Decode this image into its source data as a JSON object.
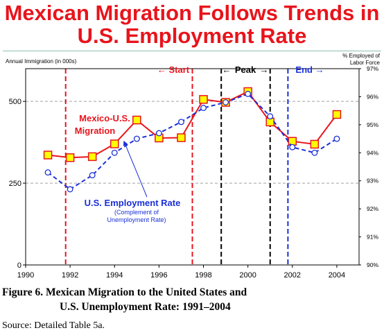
{
  "title_line1": "Mexican Migration Follows Trends in",
  "title_line2": "U.S. Employment Rate",
  "caption_line1": "Figure 6.  Mexican Migration to the United States and",
  "caption_line2": "U.S. Unemployment Rate:  1991–2004",
  "source": "Source:  Detailed Table 5a.",
  "chart_data": {
    "type": "line",
    "y_left_label": "Annual Immigration (in 000s)",
    "y_right_label_line1": "% Employed of",
    "y_right_label_line2": "Labor Force",
    "xlim": [
      1990,
      2005
    ],
    "ylim_left": [
      0,
      600
    ],
    "ylim_right": [
      90,
      97
    ],
    "x_ticks": [
      1990,
      1992,
      1994,
      1996,
      1998,
      2000,
      2002,
      2004
    ],
    "y_left_ticks": [
      0,
      250,
      500
    ],
    "y_right_ticks": [
      "90%",
      "91%",
      "92%",
      "93%",
      "94%",
      "95%",
      "96%",
      "97%"
    ],
    "y_right_tick_values": [
      90,
      91,
      92,
      93,
      94,
      95,
      96,
      97
    ],
    "grid_y_left": [
      250,
      500
    ],
    "series": [
      {
        "name": "Mexico-U.S. Migration",
        "label_line1": "Mexico-U.S.",
        "label_line2": "Migration",
        "axis": "left",
        "color": "#e8141c",
        "marker": "square",
        "x": [
          1991,
          1992,
          1993,
          1994,
          1995,
          1996,
          1997,
          1998,
          1999,
          2000,
          2001,
          2002,
          2003,
          2004
        ],
        "values": [
          336,
          328,
          331,
          370,
          443,
          388,
          389,
          506,
          497,
          530,
          437,
          378,
          369,
          460
        ]
      },
      {
        "name": "U.S. Employment Rate",
        "label_line1": "U.S. Employment Rate",
        "note_line1": "(Complement of",
        "note_line2": "Unemployment Rate)",
        "axis": "right",
        "color": "#1a2fd8",
        "marker": "circle",
        "x": [
          1991,
          1992,
          1993,
          1994,
          1995,
          1996,
          1997,
          1998,
          1999,
          2000,
          2001,
          2002,
          2003,
          2004
        ],
        "values": [
          93.3,
          92.7,
          93.2,
          94.0,
          94.5,
          94.7,
          95.1,
          95.6,
          95.8,
          96.1,
          95.3,
          94.2,
          94.0,
          94.5
        ]
      }
    ],
    "periods": [
      {
        "label": "← Start",
        "color": "#e8141c",
        "lines": [
          1991.8,
          1997.5
        ]
      },
      {
        "label": "Peak",
        "color": "#000000",
        "lines": [
          1998.8,
          2001
        ]
      },
      {
        "label": "End →",
        "color": "#1a2fd8",
        "lines": [
          2001.8
        ]
      }
    ],
    "peak_arrow_left": "←",
    "peak_arrow_right": "→",
    "colors": {
      "plot_border": "#000000",
      "grid": "#a0a0a0",
      "marker_fill_square": "#ffff00",
      "marker_fill_circle": "#ffffff"
    }
  }
}
